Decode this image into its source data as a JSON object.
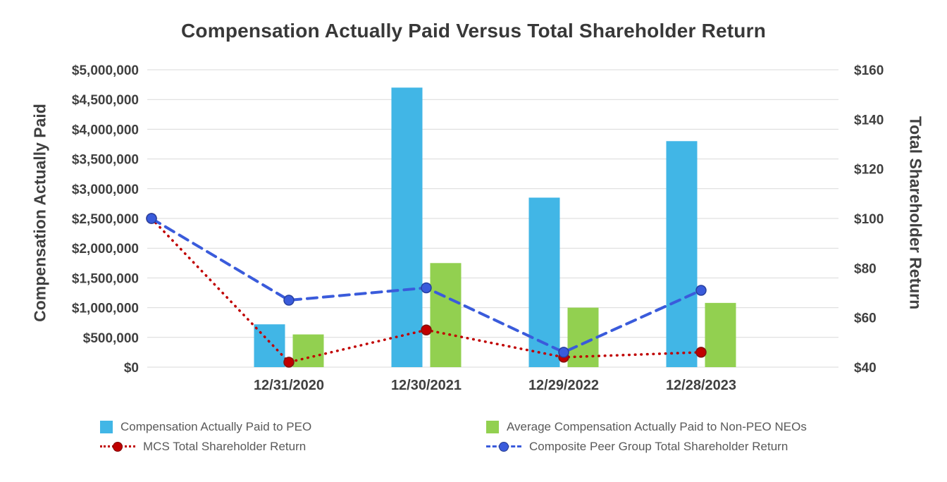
{
  "chart_data": {
    "type": "combo-bar-line",
    "title": "Compensation Actually Paid Versus Total Shareholder Return",
    "categories": [
      "",
      "12/31/2020",
      "12/30/2021",
      "12/29/2022",
      "12/28/2023"
    ],
    "bar_series": [
      {
        "name": "Compensation Actually Paid to PEO",
        "color": "#41b6e6",
        "axis": "left",
        "values": [
          null,
          720000,
          4700000,
          2850000,
          3800000
        ]
      },
      {
        "name": "Average Compensation Actually Paid to Non-PEO NEOs",
        "color": "#92d050",
        "axis": "left",
        "values": [
          null,
          550000,
          1750000,
          1000000,
          1080000
        ]
      }
    ],
    "line_series": [
      {
        "name": "MCS Total Shareholder Return",
        "color": "#c00000",
        "marker_border": "#801410",
        "style": "dotted",
        "axis": "right",
        "values": [
          100,
          42,
          55,
          44,
          46
        ]
      },
      {
        "name": "Composite Peer Group Total Shareholder Return",
        "color": "#3a5bdb",
        "marker_border": "#27409f",
        "style": "dashed",
        "axis": "right",
        "values": [
          100,
          67,
          72,
          46,
          71
        ]
      }
    ],
    "left_axis": {
      "title": "Compensation Actually Paid",
      "min": 0,
      "max": 5000000,
      "step": 500000,
      "tick_labels": [
        "$0",
        "$500,000",
        "$1,000,000",
        "$1,500,000",
        "$2,000,000",
        "$2,500,000",
        "$3,000,000",
        "$3,500,000",
        "$4,000,000",
        "$4,500,000",
        "$5,000,000"
      ]
    },
    "right_axis": {
      "title": "Total Shareholder Return",
      "min": 40,
      "max": 160,
      "step": 20,
      "tick_labels": [
        "$40",
        "$60",
        "$80",
        "$100",
        "$120",
        "$140",
        "$160"
      ]
    },
    "grid": "horizontal",
    "legend_position": "bottom"
  }
}
